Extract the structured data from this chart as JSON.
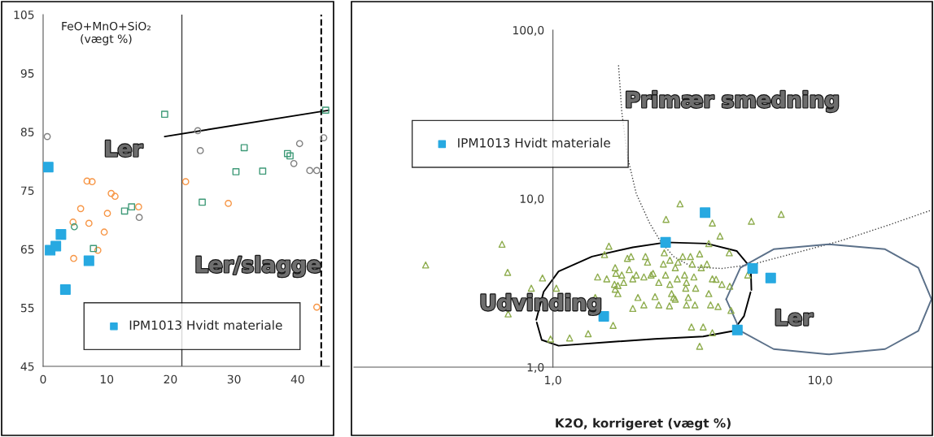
{
  "chart_data": [
    {
      "type": "scatter",
      "ylabel": "FeO+MnO+SiO₂\n(vægt %)",
      "xlim": [
        0,
        45
      ],
      "xticks": [
        0,
        10,
        20,
        30,
        40
      ],
      "ylim": [
        45,
        105
      ],
      "yticks": [
        45,
        55,
        65,
        75,
        85,
        95,
        105
      ],
      "grid": false,
      "legend": "bottom",
      "annotations": [
        "Ler",
        "Ler/slagge"
      ],
      "ref_lines": [
        {
          "axis": "x",
          "value": 21.8,
          "color": "#404040",
          "line_style": "solid"
        },
        {
          "axis": "x",
          "value": 43.7,
          "color": "#000000",
          "line_style": "dashed"
        }
      ],
      "series": [
        {
          "marker": "circle",
          "color": "#808080",
          "x": [
            0.65,
            15.1,
            24.3,
            24.7,
            40.3,
            39.4,
            41.9,
            43.0,
            44.1
          ],
          "values": [
            84.2,
            70.4,
            85.2,
            81.8,
            83.0,
            79.6,
            78.4,
            78.4,
            84.0
          ]
        },
        {
          "marker": "circle",
          "color": "#f79646",
          "x": [
            6.9,
            7.7,
            5.9,
            4.7,
            4.8,
            7.2,
            10.1,
            9.6,
            10.7,
            11.3,
            15.0,
            8.6,
            22.4,
            29.1,
            43.0
          ],
          "values": [
            76.6,
            76.5,
            71.9,
            69.6,
            63.4,
            69.4,
            71.1,
            67.9,
            74.5,
            74.0,
            72.2,
            64.8,
            76.5,
            72.8,
            55.1
          ]
        },
        {
          "marker": "square",
          "color": "#3f9a78",
          "x": [
            12.8,
            13.9,
            7.9,
            19.1,
            31.6,
            30.3,
            34.5,
            38.4,
            38.8,
            25.0,
            44.4
          ],
          "values": [
            71.5,
            72.2,
            65.1,
            88.0,
            82.3,
            78.2,
            78.3,
            81.3,
            80.9,
            73.0,
            88.7
          ]
        },
        {
          "marker": "circle",
          "color": "#3f9a78",
          "x": [
            4.9
          ],
          "values": [
            68.8
          ]
        },
        {
          "type": "line",
          "marker": "none",
          "line_style": "solid",
          "color": "#000000",
          "x": [
            19.1,
            45
          ],
          "values": [
            84.2,
            88.7
          ]
        },
        {
          "marker": "square",
          "name": "IPM1013 Hvidt materiale",
          "color": "#27a9e1",
          "x": [
            0.8,
            1.1,
            2.0,
            2.8,
            7.2,
            3.5
          ],
          "values": [
            79.0,
            64.8,
            65.5,
            67.5,
            63.0,
            58.1
          ]
        }
      ]
    },
    {
      "type": "scatter",
      "xlabel": "K2O, korrigeret (vægt %)",
      "log": "xy",
      "xlim": [
        0.18,
        26.3
      ],
      "xticks": [
        {
          "value": 1,
          "label": "1,0"
        },
        {
          "value": 10,
          "label": "10,0"
        }
      ],
      "ylim": [
        1,
        100
      ],
      "yticks": [
        {
          "value": 1,
          "label": "1,0"
        },
        {
          "value": 10,
          "label": "10,0"
        },
        {
          "value": 100,
          "label": "100,0"
        }
      ],
      "grid": false,
      "legend": "top left",
      "annotations": [
        "Primær smedning",
        "Udvinding",
        "Ler"
      ],
      "series": [
        {
          "marker": "triangle",
          "color": "#8fad4f",
          "x": [
            0.334,
            0.645,
            0.677,
            0.83,
            0.914,
            0.68,
            0.98,
            1.155,
            1.355,
            1.68,
            1.62,
            1.56,
            1.03,
            1.47,
            1.59,
            1.71,
            1.71,
            1.75,
            1.81,
            1.9,
            1.96,
            1.99,
            2.08,
            2.05,
            1.99,
            2.19,
            2.22,
            2.26,
            2.33,
            2.37,
            2.49,
            2.41,
            2.49,
            2.65,
            2.61,
            2.59,
            2.64,
            2.74,
            2.78,
            2.83,
            2.73,
            2.87,
            2.94,
            2.99,
            3.06,
            3.11,
            3.14,
            3.21,
            3.16,
            3.27,
            3.32,
            3.37,
            3.42,
            3.4,
            3.3,
            3.54,
            3.59,
            3.65,
            3.54,
            3.77,
            3.83,
            3.95,
            3.83,
            3.89,
            3.95,
            4.08,
            4.22,
            4.29,
            4.15,
            4.57,
            4.59,
            4.64,
            5.53,
            7.15,
            5.36,
            3.95,
            1.7,
            1.84,
            2.19,
            2.92,
            2.87,
            2.74,
            3.16,
            1.93,
            1.72,
            1.44,
            1.75
          ],
          "values": [
            4.04,
            5.36,
            3.65,
            2.94,
            3.38,
            2.07,
            1.47,
            1.49,
            1.58,
            1.77,
            5.22,
            4.65,
            2.94,
            3.43,
            3.34,
            3.89,
            2.9,
            3.05,
            3.52,
            4.42,
            4.53,
            3.34,
            2.59,
            3.52,
            2.23,
            2.34,
            4.53,
            4.2,
            3.52,
            3.6,
            3.18,
            2.62,
            2.34,
            7.53,
            4.77,
            4.09,
            3.52,
            3.1,
            2.73,
            2.59,
            2.31,
            3.89,
            4.2,
            9.31,
            4.53,
            3.52,
            2.94,
            2.59,
            2.34,
            4.53,
            4.09,
            3.43,
            2.94,
            2.34,
            1.73,
            4.7,
            3.89,
            1.73,
            1.33,
            4.09,
            5.41,
            7.16,
            2.73,
            2.34,
            3.34,
            3.32,
            6.0,
            3.1,
            2.29,
            4.77,
            3.02,
            2.17,
            7.34,
            8.07,
            3.52,
            1.6,
            3.1,
            3.18,
            3.43,
            3.34,
            2.53,
            4.31,
            3.18,
            3.79,
            3.6,
            2.59,
            2.73
          ]
        },
        {
          "type": "line",
          "marker": "none",
          "line_style": "dotted",
          "color": "#404040",
          "x": [
            1.76,
            1.81,
            1.9,
            2.05,
            2.3,
            2.53,
            2.83,
            3.32,
            4.29,
            5.53,
            8.12,
            11.9,
            18.1,
            26.1
          ],
          "values": [
            61.8,
            32.7,
            17.8,
            10.7,
            7.16,
            5.55,
            4.53,
            3.93,
            3.85,
            4.06,
            4.77,
            5.61,
            6.98,
            8.55
          ]
        },
        {
          "type": "line",
          "marker": "none",
          "line_style": "solid",
          "color": "#000000",
          "x": [
            0.866,
            0.923,
            1.05,
            1.4,
            1.99,
            2.65,
            3.77,
            4.87,
            5.5,
            5.53
          ],
          "values": [
            1.91,
            2.8,
            3.7,
            4.53,
            5.14,
            5.5,
            5.41,
            4.89,
            3.89,
            2.87
          ]
        },
        {
          "type": "line",
          "marker": "none",
          "line_style": "solid",
          "color": "#000000",
          "x": [
            0.87,
            0.908,
            1.05,
            1.64,
            2.41,
            3.65,
            4.72,
            5.19,
            5.49
          ],
          "values": [
            1.84,
            1.45,
            1.34,
            1.41,
            1.47,
            1.52,
            1.64,
            2.01,
            2.78
          ]
        },
        {
          "type": "line",
          "marker": "none",
          "line_style": "solid",
          "color": "#5b7089",
          "x": [
            4.45,
            5.03,
            6.7,
            10.8,
            17.5,
            23.3,
            26.1
          ],
          "values": [
            2.53,
            3.89,
            5.01,
            5.36,
            5.01,
            3.89,
            2.53
          ]
        },
        {
          "type": "line",
          "marker": "none",
          "line_style": "solid",
          "color": "#5b7089",
          "x": [
            4.45,
            5.03,
            6.7,
            10.8,
            17.5,
            23.3,
            26.1
          ],
          "values": [
            2.53,
            1.64,
            1.28,
            1.19,
            1.28,
            1.64,
            2.53
          ]
        },
        {
          "marker": "square",
          "name": "IPM1013 Hvidt materiale",
          "color": "#27a9e1",
          "x": [
            1.55,
            2.64,
            3.71,
            5.59,
            6.53,
            4.9
          ],
          "values": [
            2.0,
            5.5,
            8.25,
            3.85,
            3.38,
            1.66
          ]
        }
      ]
    }
  ]
}
